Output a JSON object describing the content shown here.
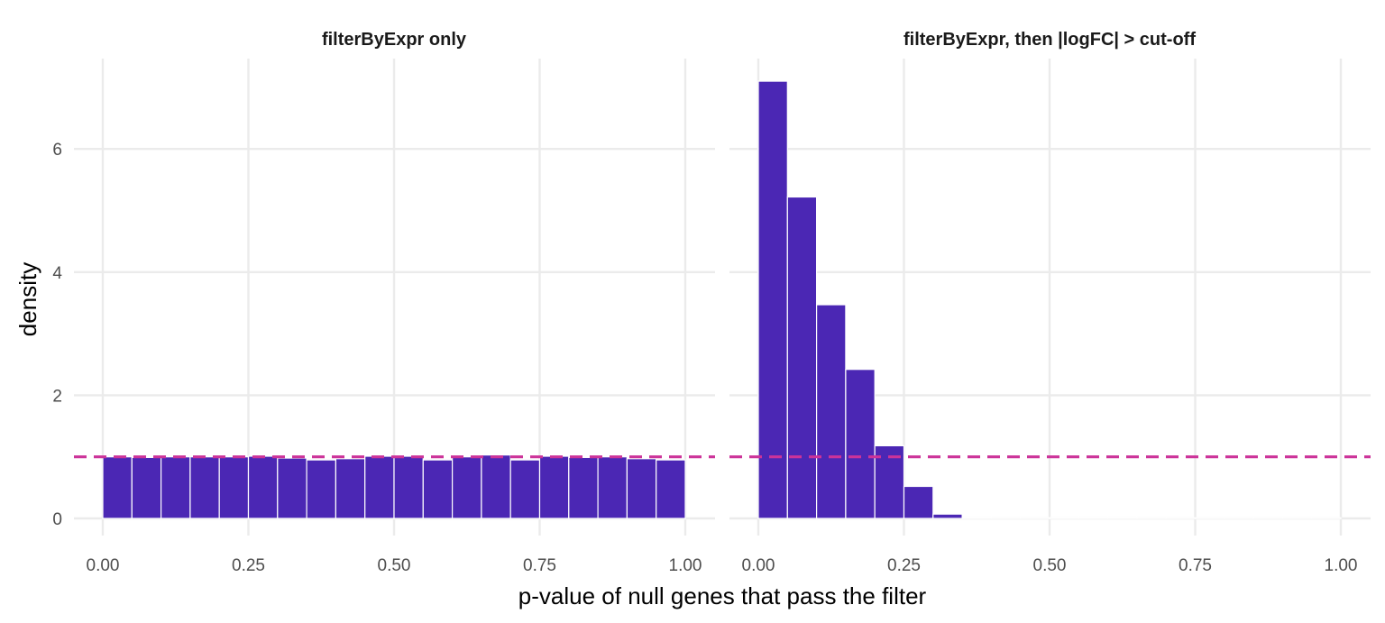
{
  "chart_data": {
    "type": "bar",
    "chart_kind": "faceted histogram",
    "xlabel": "p-value of null genes that pass the filter",
    "ylabel": "density",
    "xlim": [
      0,
      1
    ],
    "ylim": [
      0,
      7.1
    ],
    "x_ticks": [
      "0.00",
      "0.25",
      "0.50",
      "0.75",
      "1.00"
    ],
    "y_ticks": [
      "0",
      "2",
      "4",
      "6"
    ],
    "bin_width": 0.05,
    "reference_line": {
      "y": 1,
      "style": "dashed",
      "color": "#cc3399"
    },
    "bar_color": "#4b27b4",
    "grid": true,
    "panels": [
      {
        "title": "filterByExpr only",
        "bin_starts": [
          0,
          0.05,
          0.1,
          0.15,
          0.2,
          0.25,
          0.3,
          0.35,
          0.4,
          0.45,
          0.5,
          0.55,
          0.6,
          0.65,
          0.7,
          0.75,
          0.8,
          0.85,
          0.9,
          0.95
        ],
        "density": [
          1.0,
          0.99,
          1.0,
          1.0,
          1.0,
          1.01,
          0.98,
          0.95,
          0.97,
          1.01,
          1.01,
          0.95,
          1.0,
          1.03,
          0.95,
          1.01,
          0.99,
          1.0,
          0.97,
          0.95
        ]
      },
      {
        "title": "filterByExpr, then |logFC| > cut-off",
        "bin_starts": [
          0,
          0.05,
          0.1,
          0.15,
          0.2,
          0.25,
          0.3,
          0.35,
          0.4,
          0.45,
          0.5,
          0.55,
          0.6,
          0.65,
          0.7,
          0.75,
          0.8,
          0.85,
          0.9,
          0.95
        ],
        "density": [
          7.1,
          5.22,
          3.47,
          2.42,
          1.18,
          0.52,
          0.07,
          0.01,
          0.005,
          0.005,
          0.01,
          0.01,
          0.01,
          0.005,
          0.005,
          0.005,
          0.005,
          0.005,
          0.005,
          0.005
        ]
      }
    ]
  }
}
